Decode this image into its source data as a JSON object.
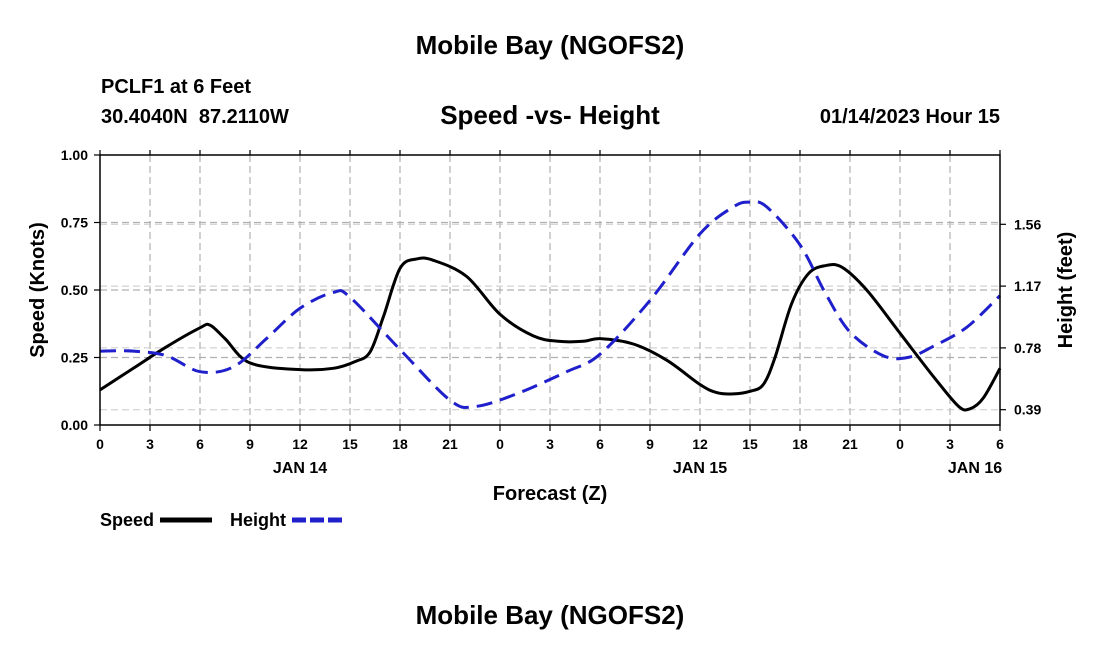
{
  "page": {
    "title_top": "Mobile Bay (NGOFS2)",
    "title_bottom": "Mobile Bay (NGOFS2)",
    "station_line": "PCLF1 at 6 Feet",
    "coords_line": "30.4040N  87.2110W",
    "subtitle": "Speed -vs- Height",
    "timestamp": "01/14/2023 Hour 15"
  },
  "chart_data": {
    "type": "line",
    "title": "Speed -vs- Height",
    "xlabel": "Forecast (Z)",
    "ylabel_left": "Speed (Knots)",
    "ylabel_right": "Height (feet)",
    "x_range_hours": [
      0,
      54
    ],
    "x_ticks": [
      {
        "h": 0,
        "label": "0"
      },
      {
        "h": 3,
        "label": "3"
      },
      {
        "h": 6,
        "label": "6"
      },
      {
        "h": 9,
        "label": "9"
      },
      {
        "h": 12,
        "label": "12"
      },
      {
        "h": 15,
        "label": "15"
      },
      {
        "h": 18,
        "label": "18"
      },
      {
        "h": 21,
        "label": "21"
      },
      {
        "h": 24,
        "label": "0"
      },
      {
        "h": 27,
        "label": "3"
      },
      {
        "h": 30,
        "label": "6"
      },
      {
        "h": 33,
        "label": "9"
      },
      {
        "h": 36,
        "label": "12"
      },
      {
        "h": 39,
        "label": "15"
      },
      {
        "h": 42,
        "label": "18"
      },
      {
        "h": 45,
        "label": "21"
      },
      {
        "h": 48,
        "label": "0"
      },
      {
        "h": 51,
        "label": "3"
      },
      {
        "h": 54,
        "label": "6"
      }
    ],
    "date_labels": [
      {
        "h": 12,
        "label": "JAN 14"
      },
      {
        "h": 36,
        "label": "JAN 15"
      },
      {
        "h": 52.5,
        "label": "JAN 16"
      }
    ],
    "ylim_left": [
      0,
      1
    ],
    "y_ticks_left": [
      {
        "v": 0,
        "label": "0.00"
      },
      {
        "v": 0.25,
        "label": "0.25"
      },
      {
        "v": 0.5,
        "label": "0.50"
      },
      {
        "v": 0.75,
        "label": "0.75"
      },
      {
        "v": 1.0,
        "label": "1.00"
      }
    ],
    "y_ticks_right": [
      {
        "v": 0.39,
        "label": "0.39"
      },
      {
        "v": 0.78,
        "label": "0.78"
      },
      {
        "v": 1.17,
        "label": "1.17"
      },
      {
        "v": 1.56,
        "label": "1.56"
      }
    ],
    "right_axis_map": {
      "offset": 0.2143,
      "scale": 0.5883
    },
    "series": [
      {
        "name": "Speed",
        "axis": "left",
        "color": "#000000",
        "dash": "solid",
        "x": [
          0,
          2,
          4,
          6,
          6.6,
          7.5,
          9,
          12,
          14,
          15.3,
          16.2,
          17,
          18,
          19,
          20,
          22,
          24,
          26,
          27.5,
          29,
          30,
          32,
          34,
          36,
          37,
          38,
          39,
          39.8,
          40.5,
          41.5,
          42.5,
          43.5,
          44.5,
          46,
          48,
          50,
          51.5,
          52.2,
          53,
          54
        ],
        "y": [
          0.13,
          0.21,
          0.29,
          0.36,
          0.37,
          0.32,
          0.23,
          0.205,
          0.21,
          0.235,
          0.27,
          0.4,
          0.58,
          0.615,
          0.61,
          0.55,
          0.41,
          0.33,
          0.31,
          0.31,
          0.32,
          0.3,
          0.24,
          0.15,
          0.12,
          0.115,
          0.125,
          0.15,
          0.25,
          0.45,
          0.56,
          0.59,
          0.585,
          0.5,
          0.34,
          0.18,
          0.07,
          0.06,
          0.1,
          0.21
        ]
      },
      {
        "name": "Height",
        "axis": "right",
        "color": "#1f1fcc",
        "dash": "dashed",
        "x": [
          0,
          2,
          4,
          6,
          8,
          10,
          12,
          14,
          15,
          18,
          21,
          22.5,
          25,
          28,
          30,
          33,
          36,
          38,
          39,
          40,
          42,
          43.5,
          45,
          47,
          48.5,
          50,
          52,
          54
        ],
        "y": [
          0.76,
          0.76,
          0.73,
          0.63,
          0.66,
          0.84,
          1.03,
          1.13,
          1.1,
          0.77,
          0.45,
          0.41,
          0.49,
          0.63,
          0.74,
          1.08,
          1.5,
          1.67,
          1.7,
          1.67,
          1.43,
          1.13,
          0.88,
          0.73,
          0.72,
          0.79,
          0.91,
          1.11
        ]
      }
    ],
    "legend": [
      {
        "name": "Speed",
        "color": "#000000",
        "dash": "solid"
      },
      {
        "name": "Height",
        "color": "#1f1fcc",
        "dash": "dashed"
      }
    ],
    "legend_placement": "bottom-left",
    "grid": true
  }
}
